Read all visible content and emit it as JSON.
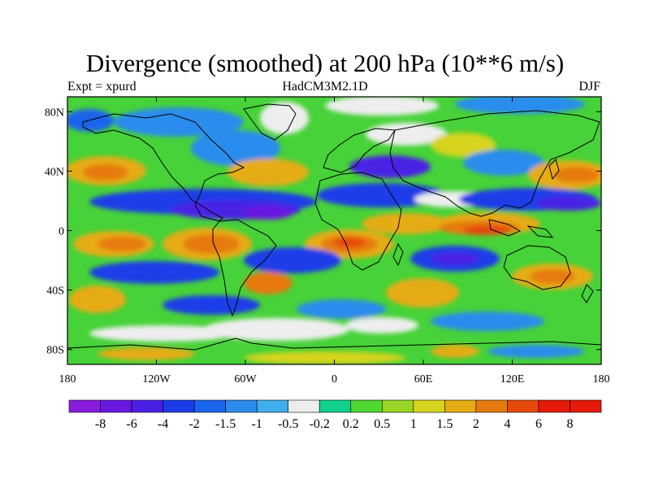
{
  "title": "Divergence (smoothed) at 200 hPa (10**6 m/s)",
  "subtitle_left": "Expt = xpurd",
  "subtitle_center": "HadCM3M2.1D",
  "subtitle_right": "DJF",
  "map": {
    "projection": "cylindrical-equidistant",
    "lon_range": [
      -180,
      180
    ],
    "lat_range": [
      -90,
      90
    ],
    "lon_ticks": [
      {
        "value": -180,
        "label": "180"
      },
      {
        "value": -120,
        "label": "120W"
      },
      {
        "value": -60,
        "label": "60W"
      },
      {
        "value": 0,
        "label": "0"
      },
      {
        "value": 60,
        "label": "60E"
      },
      {
        "value": 120,
        "label": "120E"
      },
      {
        "value": 180,
        "label": "180"
      }
    ],
    "lat_ticks": [
      {
        "value": 80,
        "label": "80N"
      },
      {
        "value": 40,
        "label": "40N"
      },
      {
        "value": 0,
        "label": "0"
      },
      {
        "value": -40,
        "label": "40S"
      },
      {
        "value": -80,
        "label": "80S"
      }
    ]
  },
  "colorbar": {
    "colors": [
      "#8a1ce0",
      "#6a18e0",
      "#4a20e6",
      "#1c3ce8",
      "#1a64ec",
      "#2c8cec",
      "#40aeea",
      "#eeeeee",
      "#10d08c",
      "#50d630",
      "#9ad424",
      "#d6d41e",
      "#e6ac14",
      "#e67a0e",
      "#e64a0a",
      "#e41a0a"
    ],
    "labels": [
      "-8",
      "-6",
      "-4",
      "-2",
      "-1.5",
      "-1",
      "-0.5",
      "-0.2",
      "0.2",
      "0.5",
      "1",
      "1.5",
      "2",
      "4",
      "6",
      "8"
    ]
  }
}
